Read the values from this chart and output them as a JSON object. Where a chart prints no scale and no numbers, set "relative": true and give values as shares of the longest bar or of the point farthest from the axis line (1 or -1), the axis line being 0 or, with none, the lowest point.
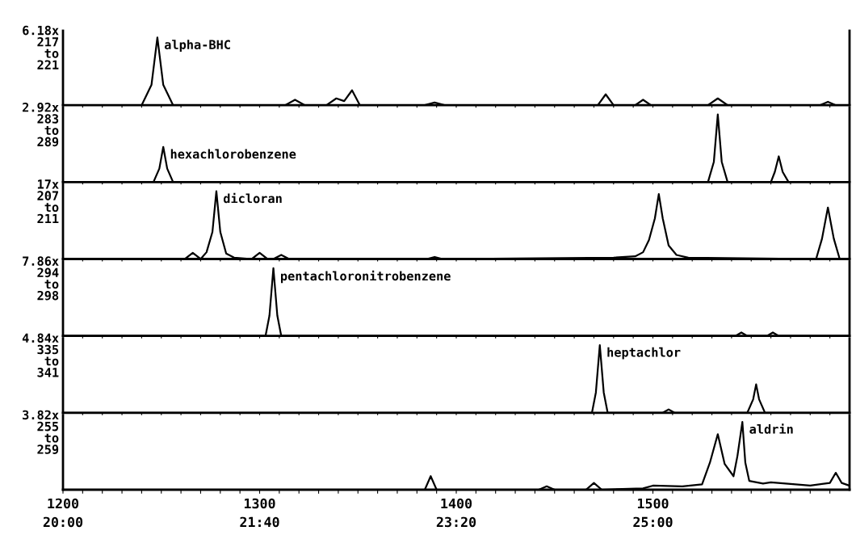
{
  "chart_data": [
    {
      "type": "line",
      "relative": true,
      "tick_labels": false,
      "color": "#000000",
      "xlim": [
        1200,
        1600
      ],
      "x": [
        1200,
        1240,
        1245,
        1248,
        1251,
        1256,
        1313,
        1318,
        1323,
        1334,
        1339,
        1343,
        1347,
        1351,
        1384,
        1389,
        1394,
        1472,
        1476,
        1480,
        1491,
        1495,
        1499,
        1528,
        1533,
        1538,
        1585,
        1589,
        1593,
        1600
      ],
      "values": [
        0,
        0,
        0.3,
        1,
        0.3,
        0,
        0,
        0.08,
        0,
        0,
        0.1,
        0.06,
        0.22,
        0,
        0,
        0.04,
        0,
        0,
        0.16,
        0,
        0,
        0.08,
        0,
        0,
        0.1,
        0,
        0,
        0.05,
        0,
        0
      ],
      "xticks": [
        1200,
        {
          "value": 1210,
          "label": null
        },
        {
          "value": 1220,
          "label": null
        },
        {
          "value": 1230,
          "label": null
        },
        {
          "value": 1240,
          "label": null
        },
        {
          "value": 1250,
          "label": null
        },
        {
          "value": 1260,
          "label": null
        },
        {
          "value": 1270,
          "label": null
        },
        {
          "value": 1280,
          "label": null
        },
        {
          "value": 1290,
          "label": null
        },
        1300,
        {
          "value": 1310,
          "label": null
        },
        {
          "value": 1320,
          "label": null
        },
        {
          "value": 1330,
          "label": null
        },
        {
          "value": 1340,
          "label": null
        },
        {
          "value": 1350,
          "label": null
        },
        {
          "value": 1360,
          "label": null
        },
        {
          "value": 1370,
          "label": null
        },
        {
          "value": 1380,
          "label": null
        },
        {
          "value": 1390,
          "label": null
        },
        1400,
        {
          "value": 1410,
          "label": null
        },
        {
          "value": 1420,
          "label": null
        },
        {
          "value": 1430,
          "label": null
        },
        {
          "value": 1440,
          "label": null
        },
        {
          "value": 1450,
          "label": null
        },
        {
          "value": 1460,
          "label": null
        },
        {
          "value": 1470,
          "label": null
        },
        {
          "value": 1480,
          "label": null
        },
        {
          "value": 1490,
          "label": null
        },
        1500,
        {
          "value": 1510,
          "label": null
        },
        {
          "value": 1520,
          "label": null
        },
        {
          "value": 1530,
          "label": null
        },
        {
          "value": 1540,
          "label": null
        },
        {
          "value": 1550,
          "label": null
        },
        {
          "value": 1560,
          "label": null
        },
        {
          "value": 1570,
          "label": null
        },
        {
          "value": 1580,
          "label": null
        },
        {
          "value": 1590,
          "label": null
        }
      ],
      "annotations": [
        "6.18x\n217\nto\n221",
        {
          "text": "alpha-BHC",
          "x": 1248,
          "y": 1
        }
      ]
    },
    {
      "type": "line",
      "relative": true,
      "tick_labels": false,
      "color": "#000000",
      "xlim": [
        1200,
        1600
      ],
      "x": [
        1200,
        1246,
        1249,
        1251,
        1253,
        1256,
        1528,
        1531,
        1533,
        1535,
        1538,
        1560,
        1562,
        1564,
        1566,
        1569,
        1600
      ],
      "values": [
        0,
        0,
        0.2,
        0.52,
        0.2,
        0,
        0,
        0.3,
        1,
        0.3,
        0,
        0,
        0.15,
        0.38,
        0.15,
        0,
        0
      ],
      "xticks": [
        1200,
        {
          "value": 1210,
          "label": null
        },
        {
          "value": 1220,
          "label": null
        },
        {
          "value": 1230,
          "label": null
        },
        {
          "value": 1240,
          "label": null
        },
        {
          "value": 1250,
          "label": null
        },
        {
          "value": 1260,
          "label": null
        },
        {
          "value": 1270,
          "label": null
        },
        {
          "value": 1280,
          "label": null
        },
        {
          "value": 1290,
          "label": null
        },
        1300,
        {
          "value": 1310,
          "label": null
        },
        {
          "value": 1320,
          "label": null
        },
        {
          "value": 1330,
          "label": null
        },
        {
          "value": 1340,
          "label": null
        },
        {
          "value": 1350,
          "label": null
        },
        {
          "value": 1360,
          "label": null
        },
        {
          "value": 1370,
          "label": null
        },
        {
          "value": 1380,
          "label": null
        },
        {
          "value": 1390,
          "label": null
        },
        1400,
        {
          "value": 1410,
          "label": null
        },
        {
          "value": 1420,
          "label": null
        },
        {
          "value": 1430,
          "label": null
        },
        {
          "value": 1440,
          "label": null
        },
        {
          "value": 1450,
          "label": null
        },
        {
          "value": 1460,
          "label": null
        },
        {
          "value": 1470,
          "label": null
        },
        {
          "value": 1480,
          "label": null
        },
        {
          "value": 1490,
          "label": null
        },
        1500,
        {
          "value": 1510,
          "label": null
        },
        {
          "value": 1520,
          "label": null
        },
        {
          "value": 1530,
          "label": null
        },
        {
          "value": 1540,
          "label": null
        },
        {
          "value": 1550,
          "label": null
        },
        {
          "value": 1560,
          "label": null
        },
        {
          "value": 1570,
          "label": null
        },
        {
          "value": 1580,
          "label": null
        },
        {
          "value": 1590,
          "label": null
        }
      ],
      "annotations": [
        "2.92x\n283\nto\n289",
        {
          "text": "hexachlorobenzene",
          "x": 1251,
          "y": 0.52
        }
      ]
    },
    {
      "type": "line",
      "relative": true,
      "tick_labels": false,
      "color": "#000000",
      "xlim": [
        1200,
        1600
      ],
      "x": [
        1200,
        1262,
        1266,
        1270,
        1273,
        1276,
        1278,
        1280,
        1283,
        1287,
        1296,
        1300,
        1304,
        1307,
        1311,
        1315,
        1385,
        1389,
        1393,
        1480,
        1491,
        1495,
        1498,
        1501,
        1503,
        1505,
        1508,
        1512,
        1518,
        1583,
        1586,
        1589,
        1592,
        1595,
        1600
      ],
      "values": [
        0,
        0,
        0.09,
        0,
        0.1,
        0.4,
        1,
        0.4,
        0.08,
        0.02,
        0,
        0.09,
        0,
        0,
        0.06,
        0,
        0,
        0.03,
        0,
        0.02,
        0.04,
        0.1,
        0.28,
        0.6,
        0.96,
        0.6,
        0.2,
        0.06,
        0.02,
        0,
        0.3,
        0.76,
        0.3,
        0,
        0
      ],
      "xticks": [
        1200,
        {
          "value": 1210,
          "label": null
        },
        {
          "value": 1220,
          "label": null
        },
        {
          "value": 1230,
          "label": null
        },
        {
          "value": 1240,
          "label": null
        },
        {
          "value": 1250,
          "label": null
        },
        {
          "value": 1260,
          "label": null
        },
        {
          "value": 1270,
          "label": null
        },
        {
          "value": 1280,
          "label": null
        },
        {
          "value": 1290,
          "label": null
        },
        1300,
        {
          "value": 1310,
          "label": null
        },
        {
          "value": 1320,
          "label": null
        },
        {
          "value": 1330,
          "label": null
        },
        {
          "value": 1340,
          "label": null
        },
        {
          "value": 1350,
          "label": null
        },
        {
          "value": 1360,
          "label": null
        },
        {
          "value": 1370,
          "label": null
        },
        {
          "value": 1380,
          "label": null
        },
        {
          "value": 1390,
          "label": null
        },
        1400,
        {
          "value": 1410,
          "label": null
        },
        {
          "value": 1420,
          "label": null
        },
        {
          "value": 1430,
          "label": null
        },
        {
          "value": 1440,
          "label": null
        },
        {
          "value": 1450,
          "label": null
        },
        {
          "value": 1460,
          "label": null
        },
        {
          "value": 1470,
          "label": null
        },
        {
          "value": 1480,
          "label": null
        },
        {
          "value": 1490,
          "label": null
        },
        1500,
        {
          "value": 1510,
          "label": null
        },
        {
          "value": 1520,
          "label": null
        },
        {
          "value": 1530,
          "label": null
        },
        {
          "value": 1540,
          "label": null
        },
        {
          "value": 1550,
          "label": null
        },
        {
          "value": 1560,
          "label": null
        },
        {
          "value": 1570,
          "label": null
        },
        {
          "value": 1580,
          "label": null
        },
        {
          "value": 1590,
          "label": null
        }
      ],
      "annotations": [
        "17x\n207\nto\n211",
        {
          "text": "dicloran",
          "x": 1278,
          "y": 1
        }
      ]
    },
    {
      "type": "line",
      "relative": true,
      "tick_labels": false,
      "color": "#000000",
      "xlim": [
        1200,
        1600
      ],
      "x": [
        1200,
        1303,
        1305,
        1307,
        1309,
        1311,
        1542,
        1545,
        1548,
        1558,
        1561,
        1564,
        1600
      ],
      "values": [
        0,
        0,
        0.3,
        1,
        0.3,
        0,
        0,
        0.05,
        0,
        0,
        0.05,
        0,
        0
      ],
      "xticks": [
        1200,
        {
          "value": 1210,
          "label": null
        },
        {
          "value": 1220,
          "label": null
        },
        {
          "value": 1230,
          "label": null
        },
        {
          "value": 1240,
          "label": null
        },
        {
          "value": 1250,
          "label": null
        },
        {
          "value": 1260,
          "label": null
        },
        {
          "value": 1270,
          "label": null
        },
        {
          "value": 1280,
          "label": null
        },
        {
          "value": 1290,
          "label": null
        },
        1300,
        {
          "value": 1310,
          "label": null
        },
        {
          "value": 1320,
          "label": null
        },
        {
          "value": 1330,
          "label": null
        },
        {
          "value": 1340,
          "label": null
        },
        {
          "value": 1350,
          "label": null
        },
        {
          "value": 1360,
          "label": null
        },
        {
          "value": 1370,
          "label": null
        },
        {
          "value": 1380,
          "label": null
        },
        {
          "value": 1390,
          "label": null
        },
        1400,
        {
          "value": 1410,
          "label": null
        },
        {
          "value": 1420,
          "label": null
        },
        {
          "value": 1430,
          "label": null
        },
        {
          "value": 1440,
          "label": null
        },
        {
          "value": 1450,
          "label": null
        },
        {
          "value": 1460,
          "label": null
        },
        {
          "value": 1470,
          "label": null
        },
        {
          "value": 1480,
          "label": null
        },
        {
          "value": 1490,
          "label": null
        },
        1500,
        {
          "value": 1510,
          "label": null
        },
        {
          "value": 1520,
          "label": null
        },
        {
          "value": 1530,
          "label": null
        },
        {
          "value": 1540,
          "label": null
        },
        {
          "value": 1550,
          "label": null
        },
        {
          "value": 1560,
          "label": null
        },
        {
          "value": 1570,
          "label": null
        },
        {
          "value": 1580,
          "label": null
        },
        {
          "value": 1590,
          "label": null
        }
      ],
      "annotations": [
        "7.86x\n294\nto\n298",
        {
          "text": "pentachloronitrobenzene",
          "x": 1307,
          "y": 1
        }
      ]
    },
    {
      "type": "line",
      "relative": true,
      "tick_labels": false,
      "color": "#000000",
      "xlim": [
        1200,
        1600
      ],
      "x": [
        1200,
        1469,
        1471,
        1473,
        1475,
        1477,
        1505,
        1508,
        1511,
        1548,
        1551,
        1552.5,
        1554,
        1557,
        1600
      ],
      "values": [
        0,
        0,
        0.3,
        1,
        0.3,
        0,
        0,
        0.05,
        0,
        0,
        0.2,
        0.42,
        0.2,
        0,
        0
      ],
      "xticks": [
        1200,
        {
          "value": 1210,
          "label": null
        },
        {
          "value": 1220,
          "label": null
        },
        {
          "value": 1230,
          "label": null
        },
        {
          "value": 1240,
          "label": null
        },
        {
          "value": 1250,
          "label": null
        },
        {
          "value": 1260,
          "label": null
        },
        {
          "value": 1270,
          "label": null
        },
        {
          "value": 1280,
          "label": null
        },
        {
          "value": 1290,
          "label": null
        },
        1300,
        {
          "value": 1310,
          "label": null
        },
        {
          "value": 1320,
          "label": null
        },
        {
          "value": 1330,
          "label": null
        },
        {
          "value": 1340,
          "label": null
        },
        {
          "value": 1350,
          "label": null
        },
        {
          "value": 1360,
          "label": null
        },
        {
          "value": 1370,
          "label": null
        },
        {
          "value": 1380,
          "label": null
        },
        {
          "value": 1390,
          "label": null
        },
        1400,
        {
          "value": 1410,
          "label": null
        },
        {
          "value": 1420,
          "label": null
        },
        {
          "value": 1430,
          "label": null
        },
        {
          "value": 1440,
          "label": null
        },
        {
          "value": 1450,
          "label": null
        },
        {
          "value": 1460,
          "label": null
        },
        {
          "value": 1470,
          "label": null
        },
        {
          "value": 1480,
          "label": null
        },
        {
          "value": 1490,
          "label": null
        },
        1500,
        {
          "value": 1510,
          "label": null
        },
        {
          "value": 1520,
          "label": null
        },
        {
          "value": 1530,
          "label": null
        },
        {
          "value": 1540,
          "label": null
        },
        {
          "value": 1550,
          "label": null
        },
        {
          "value": 1560,
          "label": null
        },
        {
          "value": 1570,
          "label": null
        },
        {
          "value": 1580,
          "label": null
        },
        {
          "value": 1590,
          "label": null
        }
      ],
      "annotations": [
        "4.84x\n335\nto\n341",
        {
          "text": "heptachlor",
          "x": 1473,
          "y": 1
        }
      ]
    },
    {
      "type": "line",
      "relative": true,
      "tick_labels": "x",
      "color": "#000000",
      "xlim": [
        1200,
        1600
      ],
      "x": [
        1200,
        1384,
        1387,
        1390,
        1442,
        1446,
        1450,
        1466,
        1470,
        1474,
        1495,
        1500,
        1515,
        1525,
        1529,
        1533,
        1536.5,
        1541,
        1543,
        1545.5,
        1547,
        1549,
        1556,
        1560,
        1580,
        1590,
        1593,
        1596,
        1600
      ],
      "values": [
        0,
        0,
        0.2,
        0,
        0,
        0.05,
        0,
        0,
        0.1,
        0,
        0.02,
        0.06,
        0.05,
        0.08,
        0.4,
        0.82,
        0.38,
        0.2,
        0.5,
        1,
        0.4,
        0.13,
        0.09,
        0.11,
        0.06,
        0.1,
        0.25,
        0.1,
        0.06
      ],
      "xticks": [
        1200,
        {
          "value": 1210,
          "label": null
        },
        {
          "value": 1220,
          "label": null
        },
        {
          "value": 1230,
          "label": null
        },
        {
          "value": 1240,
          "label": null
        },
        {
          "value": 1250,
          "label": null
        },
        {
          "value": 1260,
          "label": null
        },
        {
          "value": 1270,
          "label": null
        },
        {
          "value": 1280,
          "label": null
        },
        {
          "value": 1290,
          "label": null
        },
        1300,
        {
          "value": 1310,
          "label": null
        },
        {
          "value": 1320,
          "label": null
        },
        {
          "value": 1330,
          "label": null
        },
        {
          "value": 1340,
          "label": null
        },
        {
          "value": 1350,
          "label": null
        },
        {
          "value": 1360,
          "label": null
        },
        {
          "value": 1370,
          "label": null
        },
        {
          "value": 1380,
          "label": null
        },
        {
          "value": 1390,
          "label": null
        },
        1400,
        {
          "value": 1410,
          "label": null
        },
        {
          "value": 1420,
          "label": null
        },
        {
          "value": 1430,
          "label": null
        },
        {
          "value": 1440,
          "label": null
        },
        {
          "value": 1450,
          "label": null
        },
        {
          "value": 1460,
          "label": null
        },
        {
          "value": 1470,
          "label": null
        },
        {
          "value": 1480,
          "label": null
        },
        {
          "value": 1490,
          "label": null
        },
        1500,
        {
          "value": 1510,
          "label": null
        },
        {
          "value": 1520,
          "label": null
        },
        {
          "value": 1530,
          "label": null
        },
        {
          "value": 1540,
          "label": null
        },
        {
          "value": 1550,
          "label": null
        },
        {
          "value": 1560,
          "label": null
        },
        {
          "value": 1570,
          "label": null
        },
        {
          "value": 1580,
          "label": null
        },
        {
          "value": 1590,
          "label": null
        }
      ],
      "x2lim": [
        20,
        26.6667
      ],
      "x2ticks": [
        {
          "value": 20,
          "label": "20:00"
        },
        {
          "value": 21.6667,
          "label": "21:40"
        },
        {
          "value": 23.3333,
          "label": "23:20"
        },
        {
          "value": 25,
          "label": "25:00"
        }
      ],
      "annotations": [
        "3.82x\n255\nto\n259",
        {
          "text": "aldrin",
          "x": 1545.5,
          "y": 1
        }
      ]
    }
  ]
}
